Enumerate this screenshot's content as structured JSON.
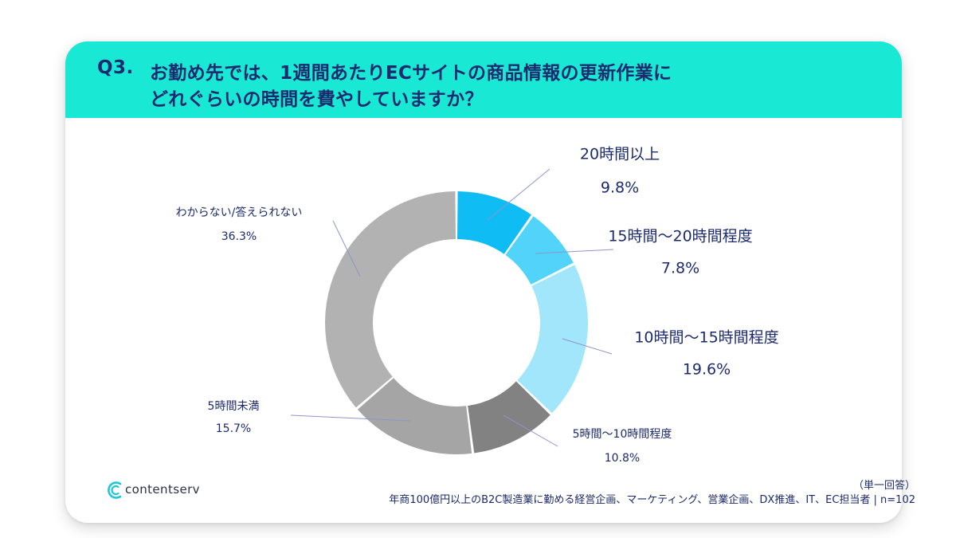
{
  "header": {
    "q_number": "Q3.",
    "question_line1": "お勤め先では、1週間あたりECサイトの商品情報の更新作業に",
    "question_line2": "どれぐらいの時間を費やしていますか？"
  },
  "colors": {
    "header_bg": "#18e8d4",
    "title_text": "#1c2a6e",
    "leader_line": "#8e95c8"
  },
  "chart_data": {
    "type": "pie",
    "variant": "donut",
    "unit": "%",
    "slices": [
      {
        "label": "20時間以上",
        "value": 9.8,
        "value_label": "9.8%",
        "color": "#0fbdf4"
      },
      {
        "label": "15時間〜20時間程度",
        "value": 7.8,
        "value_label": "7.8%",
        "color": "#52d3fa"
      },
      {
        "label": "10時間〜15時間程度",
        "value": 19.6,
        "value_label": "19.6%",
        "color": "#a2e6fc"
      },
      {
        "label": "5時間〜10時間程度",
        "value": 10.8,
        "value_label": "10.8%",
        "color": "#828282"
      },
      {
        "label": "5時間未満",
        "value": 15.7,
        "value_label": "15.7%",
        "color": "#a5a5a5"
      },
      {
        "label": "わからない/答えられない",
        "value": 36.3,
        "value_label": "36.3%",
        "color": "#b2b2b2"
      }
    ]
  },
  "footer": {
    "answer_type": "（単一回答）",
    "respondents": "年商100億円以上のB2C製造業に勤める経営企画、マーケティング、営業企画、DX推進、IT、EC担当者 | n=102"
  },
  "logo": {
    "name": "contentserv",
    "icon": "contentserv-c-icon"
  }
}
